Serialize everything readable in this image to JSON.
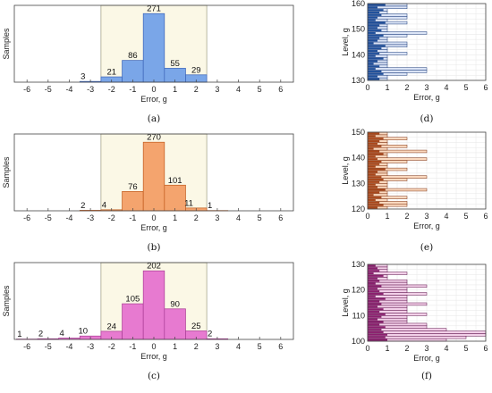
{
  "chart_data": [
    {
      "panel": "a",
      "type": "bar",
      "caption": "(a)",
      "xlabel": "Error, g",
      "ylabel": "Samples",
      "xlim": [
        -6.6,
        6.6
      ],
      "xticks": [
        -6,
        -5,
        -4,
        -3,
        -2,
        -1,
        0,
        1,
        2,
        3,
        4,
        5,
        6
      ],
      "tolerance_band": [
        -2.5,
        2.5
      ],
      "x": [
        -3,
        -2,
        -1,
        0,
        1,
        2
      ],
      "values": [
        3,
        21,
        86,
        271,
        55,
        29
      ],
      "color": "#7aa6e8",
      "edge": "#3a64b8"
    },
    {
      "panel": "b",
      "type": "bar",
      "caption": "(b)",
      "xlabel": "Error, g",
      "ylabel": "Samples",
      "xlim": [
        -6.6,
        6.6
      ],
      "xticks": [
        -6,
        -5,
        -4,
        -3,
        -2,
        -1,
        0,
        1,
        2,
        3,
        4,
        5,
        6
      ],
      "tolerance_band": [
        -2.5,
        2.5
      ],
      "x": [
        -3,
        -2,
        -1,
        0,
        1,
        2,
        3
      ],
      "values": [
        2,
        4,
        76,
        270,
        101,
        11,
        1
      ],
      "color": "#f4a46e",
      "edge": "#c05a1c"
    },
    {
      "panel": "c",
      "type": "bar",
      "caption": "(c)",
      "xlabel": "Error, g",
      "ylabel": "Samples",
      "xlim": [
        -6.6,
        6.6
      ],
      "xticks": [
        -6,
        -5,
        -4,
        -3,
        -2,
        -1,
        0,
        1,
        2,
        3,
        4,
        5,
        6
      ],
      "tolerance_band": [
        -2.5,
        2.5
      ],
      "x": [
        -6,
        -5,
        -4,
        -3,
        -2,
        -1,
        0,
        1,
        2,
        3
      ],
      "values": [
        1,
        2,
        4,
        10,
        24,
        105,
        202,
        90,
        25,
        2
      ],
      "color": "#e77ad0",
      "edge": "#a83c94"
    },
    {
      "panel": "d",
      "type": "bar",
      "orientation": "horizontal",
      "caption": "(d)",
      "xlabel": "Error, g",
      "ylabel": "Level, g",
      "xlim": [
        0,
        6
      ],
      "ylim": [
        130,
        160
      ],
      "xticks": [
        0,
        1,
        2,
        3,
        4,
        5,
        6
      ],
      "yticks": [
        130,
        140,
        150,
        160
      ],
      "levels": [
        130,
        131,
        132,
        133,
        134,
        135,
        136,
        137,
        138,
        139,
        140,
        141,
        142,
        143,
        144,
        145,
        146,
        147,
        148,
        149,
        150,
        151,
        152,
        153,
        154,
        155,
        156,
        157,
        158,
        159
      ],
      "light_values": [
        1,
        1,
        2,
        3,
        3,
        1,
        1,
        1,
        1,
        1,
        2,
        1,
        1,
        2,
        2,
        1,
        1,
        2,
        3,
        1,
        1,
        1,
        2,
        1,
        2,
        2,
        1,
        1,
        2,
        2
      ],
      "dark_values": [
        0.6,
        0.5,
        0.8,
        0.7,
        0.4,
        0.6,
        0.3,
        0.5,
        0.8,
        0.4,
        0.6,
        0.5,
        0.7,
        0.9,
        0.3,
        0.5,
        0.6,
        0.8,
        0.4,
        0.7,
        0.5,
        0.6,
        0.9,
        0.4,
        0.5,
        0.7,
        0.6,
        0.8,
        0.5,
        0.9
      ],
      "light_color": "#dbe4f6",
      "dark_color": "#1f4f9a",
      "edge": "#1a3a7a"
    },
    {
      "panel": "e",
      "type": "bar",
      "orientation": "horizontal",
      "caption": "(e)",
      "xlabel": "Error, g",
      "ylabel": "Level, g",
      "xlim": [
        0,
        6
      ],
      "ylim": [
        120,
        150
      ],
      "xticks": [
        0,
        1,
        2,
        3,
        4,
        5,
        6
      ],
      "yticks": [
        120,
        130,
        140,
        150
      ],
      "levels": [
        120,
        121,
        122,
        123,
        124,
        125,
        126,
        127,
        128,
        129,
        130,
        131,
        132,
        133,
        134,
        135,
        136,
        137,
        138,
        139,
        140,
        141,
        142,
        143,
        144,
        145,
        146,
        147,
        148,
        149
      ],
      "light_values": [
        1,
        2,
        2,
        1,
        2,
        1,
        1,
        3,
        1,
        1,
        1,
        2,
        3,
        1,
        1,
        2,
        1,
        1,
        2,
        3,
        1,
        1,
        3,
        1,
        2,
        1,
        1,
        2,
        1,
        1
      ],
      "dark_values": [
        0.5,
        0.8,
        0.6,
        0.4,
        0.7,
        0.3,
        0.6,
        0.9,
        0.5,
        0.4,
        0.6,
        0.8,
        0.7,
        0.4,
        0.5,
        0.9,
        0.4,
        0.6,
        0.7,
        0.5,
        0.4,
        0.8,
        0.6,
        0.3,
        0.7,
        0.5,
        0.6,
        0.8,
        0.4,
        0.6
      ],
      "light_color": "#fbd9bf",
      "dark_color": "#a8461a",
      "edge": "#7a2d0c"
    },
    {
      "panel": "f",
      "type": "bar",
      "orientation": "horizontal",
      "caption": "(f)",
      "xlabel": "Error, g",
      "ylabel": "Level, g",
      "xlim": [
        0,
        6
      ],
      "ylim": [
        100,
        130
      ],
      "xticks": [
        0,
        1,
        2,
        3,
        4,
        5,
        6
      ],
      "yticks": [
        100,
        110,
        120,
        130
      ],
      "levels": [
        100,
        101,
        102,
        103,
        104,
        105,
        106,
        107,
        108,
        109,
        110,
        111,
        112,
        113,
        114,
        115,
        116,
        117,
        118,
        119,
        120,
        121,
        122,
        123,
        124,
        125,
        126,
        127,
        128,
        129
      ],
      "light_values": [
        4,
        5,
        6,
        6,
        4,
        3,
        3,
        2,
        2,
        2,
        3,
        2,
        2,
        2,
        3,
        2,
        2,
        2,
        3,
        2,
        2,
        3,
        2,
        2,
        1,
        1,
        2,
        1,
        1,
        1
      ],
      "dark_values": [
        1.0,
        0.9,
        1.0,
        0.8,
        0.7,
        0.9,
        0.6,
        0.8,
        0.5,
        0.7,
        0.9,
        0.6,
        0.8,
        0.5,
        0.7,
        0.6,
        0.9,
        0.4,
        0.8,
        0.6,
        0.5,
        0.7,
        0.4,
        0.6,
        0.5,
        0.8,
        0.3,
        0.6,
        0.5,
        0.4
      ],
      "light_color": "#f2cfe8",
      "dark_color": "#8a1f6e",
      "edge": "#5a0f48"
    }
  ]
}
